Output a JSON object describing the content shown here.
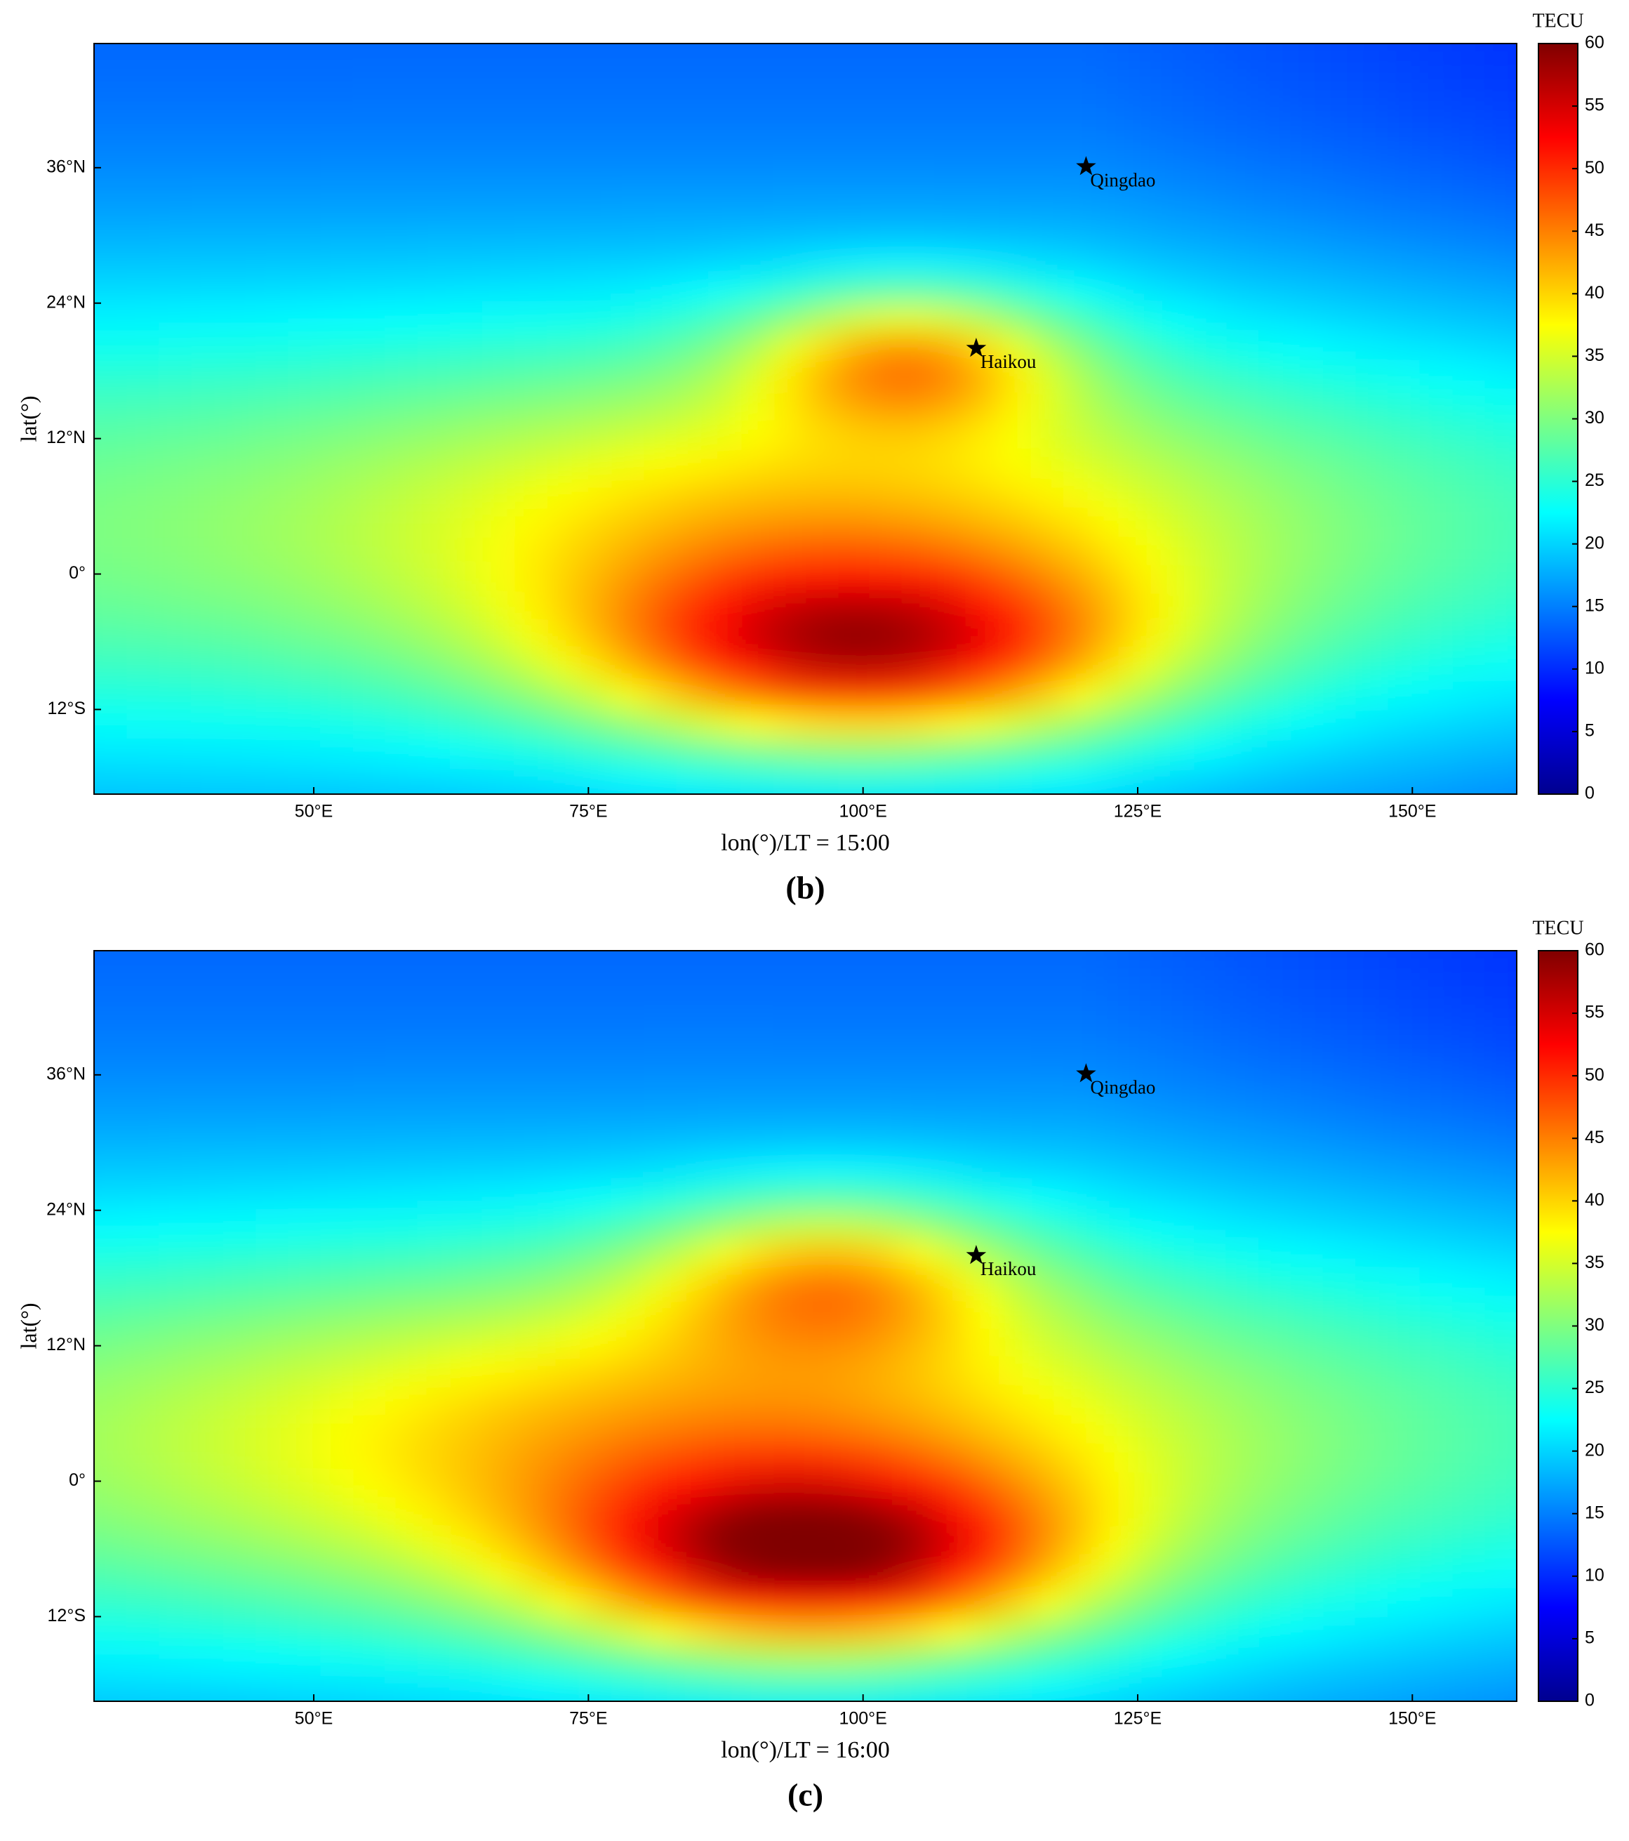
{
  "chart_data": [
    {
      "type": "heatmap",
      "panel_label": "(b)",
      "xlabel": "lon(°)/LT = 15:00",
      "ylabel": "lat(°)",
      "xlim": [
        30,
        159.5
      ],
      "ylim": [
        -19.5,
        47
      ],
      "xticks": [
        {
          "value": 50,
          "label": "50°E"
        },
        {
          "value": 75,
          "label": "75°E"
        },
        {
          "value": 100,
          "label": "100°E"
        },
        {
          "value": 125,
          "label": "125°E"
        },
        {
          "value": 150,
          "label": "150°E"
        }
      ],
      "yticks": [
        {
          "value": -12,
          "label": "12°S"
        },
        {
          "value": 0,
          "label": "0°"
        },
        {
          "value": 12,
          "label": "12°N"
        },
        {
          "value": 24,
          "label": "24°N"
        },
        {
          "value": 36,
          "label": "36°N"
        }
      ],
      "colorbar": {
        "label": "TECU",
        "lim": [
          0,
          60
        ],
        "ticks": [
          0,
          5,
          10,
          15,
          20,
          25,
          30,
          35,
          40,
          45,
          50,
          55,
          60
        ]
      },
      "stations": [
        {
          "name": "Qingdao",
          "lon": 120.3,
          "lat": 36.1
        },
        {
          "name": "Haikou",
          "lon": 110.3,
          "lat": 20.0
        }
      ]
    },
    {
      "type": "heatmap",
      "panel_label": "(c)",
      "xlabel": "lon(°)/LT = 16:00",
      "ylabel": "lat(°)",
      "xlim": [
        30,
        159.5
      ],
      "ylim": [
        -19.5,
        47
      ],
      "xticks": [
        {
          "value": 50,
          "label": "50°E"
        },
        {
          "value": 75,
          "label": "75°E"
        },
        {
          "value": 100,
          "label": "100°E"
        },
        {
          "value": 125,
          "label": "125°E"
        },
        {
          "value": 150,
          "label": "150°E"
        }
      ],
      "yticks": [
        {
          "value": -12,
          "label": "12°S"
        },
        {
          "value": 0,
          "label": "0°"
        },
        {
          "value": 12,
          "label": "12°N"
        },
        {
          "value": 24,
          "label": "24°N"
        },
        {
          "value": 36,
          "label": "36°N"
        }
      ],
      "colorbar": {
        "label": "TECU",
        "lim": [
          0,
          60
        ],
        "ticks": [
          0,
          5,
          10,
          15,
          20,
          25,
          30,
          35,
          40,
          45,
          50,
          55,
          60
        ]
      },
      "stations": [
        {
          "name": "Qingdao",
          "lon": 120.3,
          "lat": 36.1
        },
        {
          "name": "Haikou",
          "lon": 110.3,
          "lat": 20.0
        }
      ]
    }
  ]
}
